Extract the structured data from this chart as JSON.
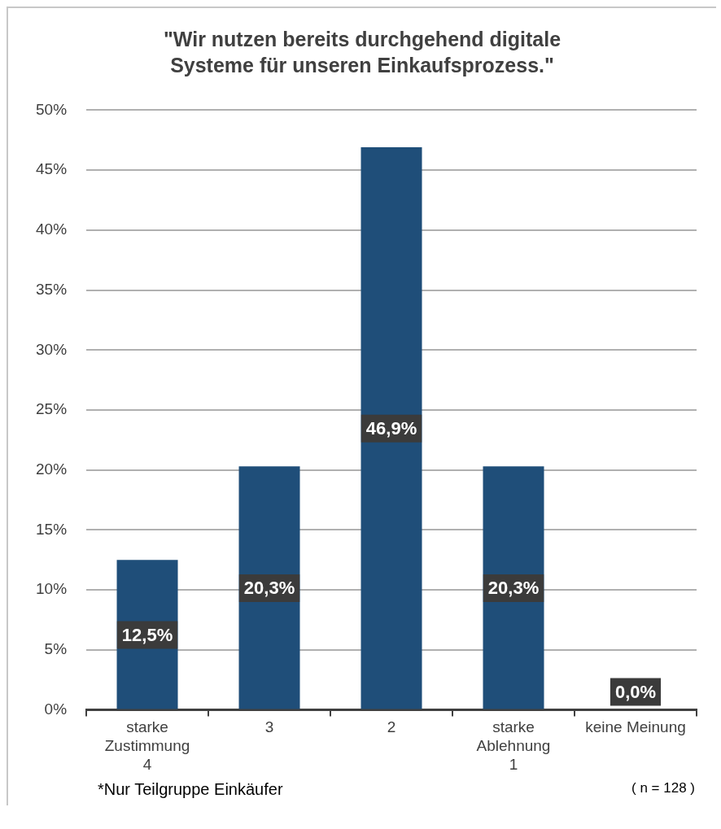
{
  "chart_data": {
    "type": "bar",
    "title": "\"Wir nutzen bereits durchgehend digitale Systeme für unseren Einkaufsprozess.\"",
    "categories": [
      "starke\nZustimmung\n4",
      "3",
      "2",
      "starke\nAblehnung\n1",
      "keine Meinung"
    ],
    "values": [
      12.5,
      20.3,
      46.9,
      20.3,
      0.0
    ],
    "value_labels": [
      "12,5%",
      "20,3%",
      "46,9%",
      "20,3%",
      "0,0%"
    ],
    "color": "#1f4e79",
    "ylim": [
      0,
      50
    ],
    "yticks": [
      {
        "value": 0,
        "label": "0%"
      },
      {
        "value": 5,
        "label": "5%"
      },
      {
        "value": 10,
        "label": "10%"
      },
      {
        "value": 15,
        "label": "15%"
      },
      {
        "value": 20,
        "label": "20%"
      },
      {
        "value": 25,
        "label": "25%"
      },
      {
        "value": 30,
        "label": "30%"
      },
      {
        "value": 35,
        "label": "35%"
      },
      {
        "value": 40,
        "label": "40%"
      },
      {
        "value": 45,
        "label": "45%"
      },
      {
        "value": 50,
        "label": "50%"
      }
    ],
    "grid": "y",
    "annotations": [
      "*Nur Teilgruppe Einkäufer",
      "( n = 128 )"
    ]
  }
}
